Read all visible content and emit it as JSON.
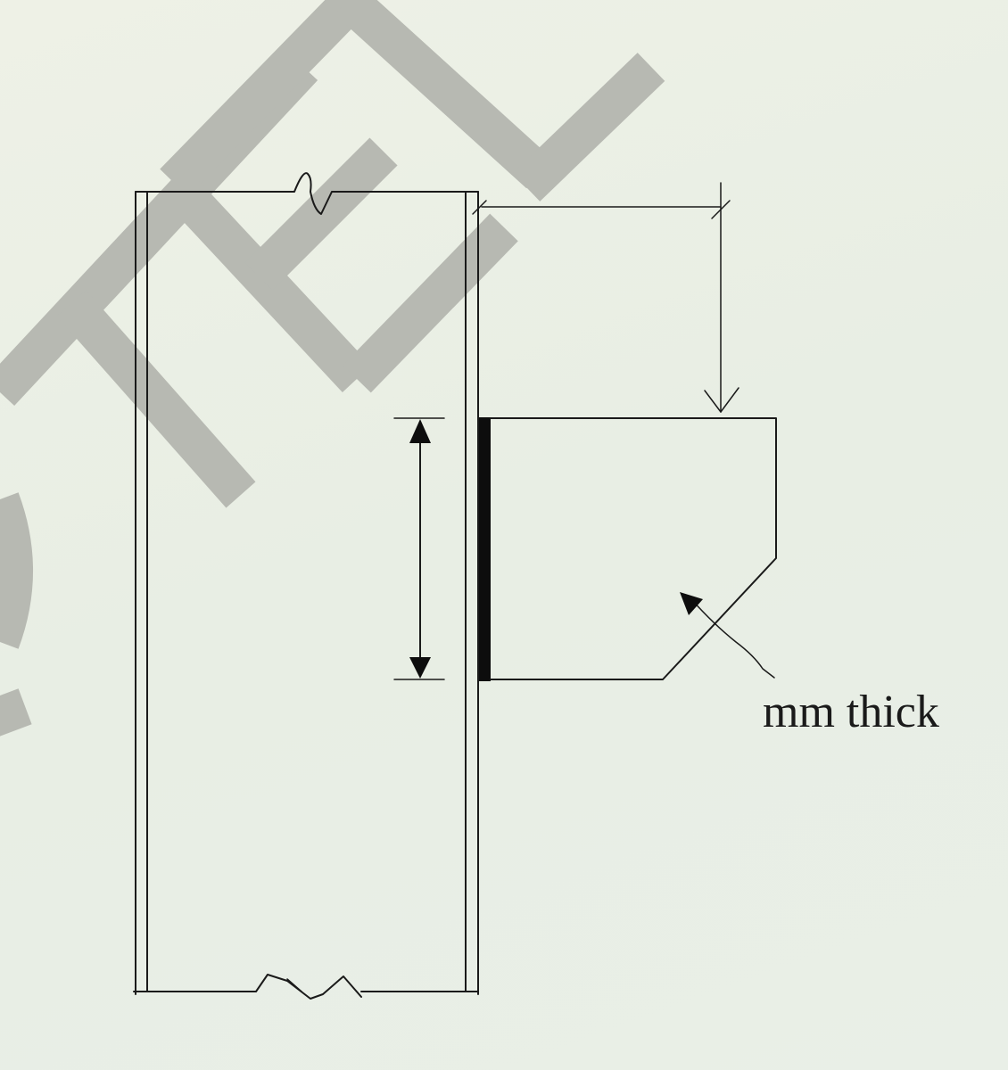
{
  "diagram": {
    "thickness_label": "mm thick",
    "watermark": "STEEL",
    "colors": {
      "background": "#eef1e6",
      "ink": "#1a1a1a",
      "watermark": "#b7b9b2"
    }
  }
}
